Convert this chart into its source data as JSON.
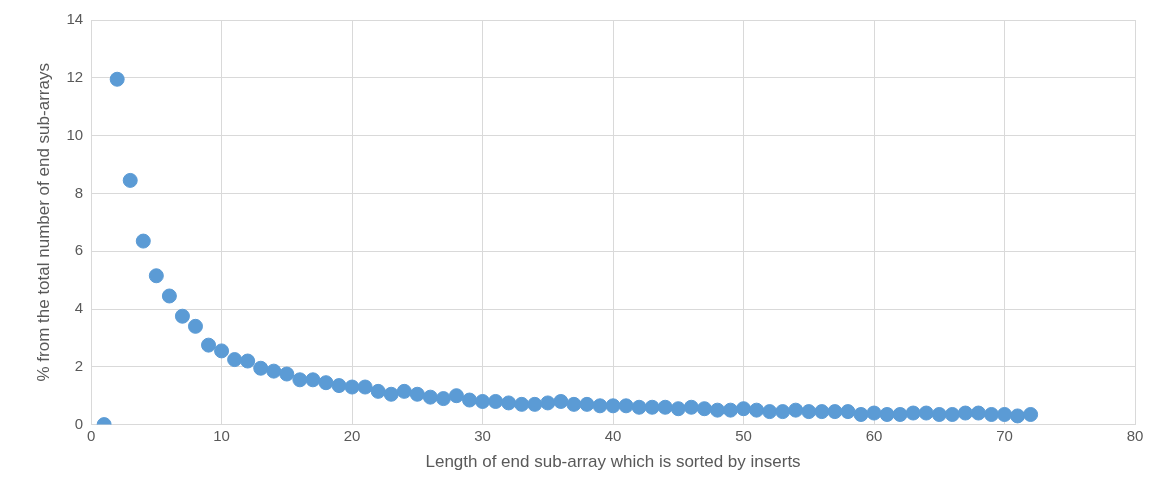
{
  "chart_data": {
    "type": "scatter",
    "xlabel": "Length of end sub-array which is sorted by inserts",
    "ylabel": "% from the total number of end sub-arrays",
    "x": [
      1,
      2,
      3,
      4,
      5,
      6,
      7,
      8,
      9,
      10,
      11,
      12,
      13,
      14,
      15,
      16,
      17,
      18,
      19,
      20,
      21,
      22,
      23,
      24,
      25,
      26,
      27,
      28,
      29,
      30,
      31,
      32,
      33,
      34,
      35,
      36,
      37,
      38,
      39,
      40,
      41,
      42,
      43,
      44,
      45,
      46,
      47,
      48,
      49,
      50,
      51,
      52,
      53,
      54,
      55,
      56,
      57,
      58,
      59,
      60,
      61,
      62,
      63,
      64,
      65,
      66,
      67,
      68,
      69,
      70,
      71,
      72
    ],
    "values": [
      0,
      11.95,
      8.45,
      6.35,
      5.15,
      4.45,
      3.75,
      3.4,
      2.75,
      2.55,
      2.25,
      2.2,
      1.95,
      1.85,
      1.75,
      1.55,
      1.55,
      1.45,
      1.35,
      1.3,
      1.3,
      1.15,
      1.05,
      1.15,
      1.05,
      0.95,
      0.9,
      1.0,
      0.85,
      0.8,
      0.8,
      0.75,
      0.7,
      0.7,
      0.75,
      0.8,
      0.7,
      0.7,
      0.65,
      0.65,
      0.65,
      0.6,
      0.6,
      0.6,
      0.55,
      0.6,
      0.55,
      0.5,
      0.5,
      0.55,
      0.5,
      0.45,
      0.45,
      0.5,
      0.45,
      0.45,
      0.45,
      0.45,
      0.35,
      0.4,
      0.35,
      0.35,
      0.4,
      0.4,
      0.35,
      0.35,
      0.4,
      0.4,
      0.35,
      0.35,
      0.3,
      0.35
    ],
    "color": "#5b9bd5",
    "marker": "circle",
    "grid": true,
    "xlim": [
      0,
      80
    ],
    "xticks": [
      0,
      10,
      20,
      30,
      40,
      50,
      60,
      70,
      80
    ],
    "ylim": [
      0,
      14
    ],
    "yticks": [
      0,
      2,
      4,
      6,
      8,
      10,
      12,
      14
    ]
  }
}
